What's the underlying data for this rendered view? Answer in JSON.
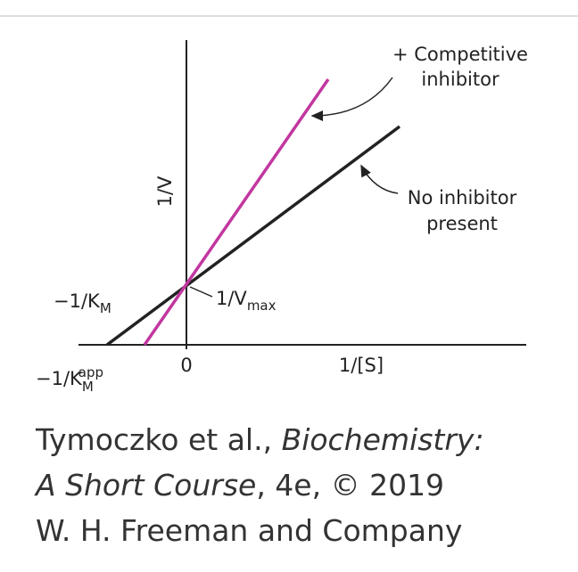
{
  "diagram": {
    "labels": {
      "competitive": [
        "+ Competitive",
        "inhibitor"
      ],
      "no_inhibitor": [
        "No inhibitor",
        "present"
      ],
      "y_axis": "1/V",
      "x_axis": "1/[S]",
      "origin": "0",
      "neg_km": {
        "main": "−1/K",
        "sub": "M"
      },
      "neg_km_app": {
        "main": "−1/K",
        "sub": "M",
        "sup": "app"
      },
      "vmax": {
        "main": "1/V",
        "sub": "max"
      }
    },
    "caption": {
      "line1": [
        "Tymoczko et al., ",
        "Biochemistry:"
      ],
      "line2": [
        "A Short Course",
        ", 4e, © 2019"
      ],
      "line3": "W. H. Freeman and Company"
    }
  }
}
